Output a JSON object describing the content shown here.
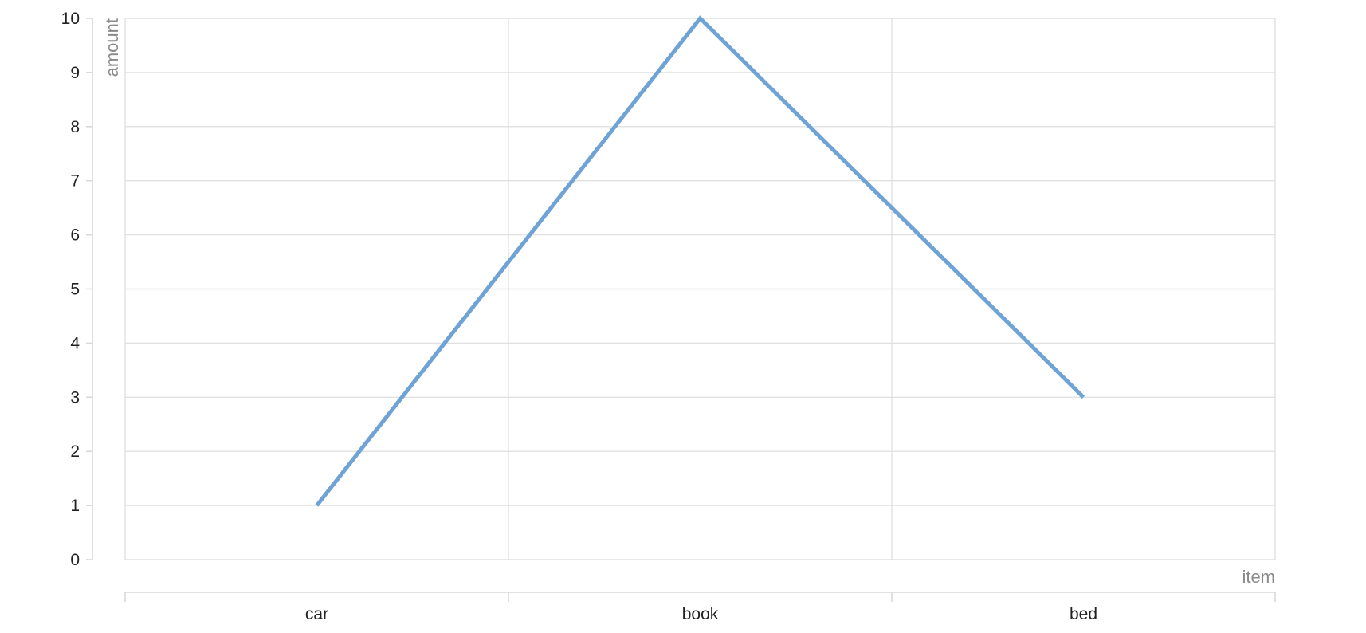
{
  "chart_data": {
    "type": "line",
    "title": "",
    "xlabel": "item",
    "ylabel": "amount",
    "categories": [
      "car",
      "book",
      "bed"
    ],
    "x_band_boundaries": [
      "",
      "",
      "",
      ""
    ],
    "series": [
      {
        "values": [
          1,
          10,
          3
        ],
        "color": "#6fa3d6"
      }
    ],
    "ylim": [
      0,
      10
    ],
    "yticks": [
      0,
      1,
      2,
      3,
      4,
      5,
      6,
      7,
      8,
      9,
      10
    ],
    "grid": true,
    "legend": "none"
  }
}
